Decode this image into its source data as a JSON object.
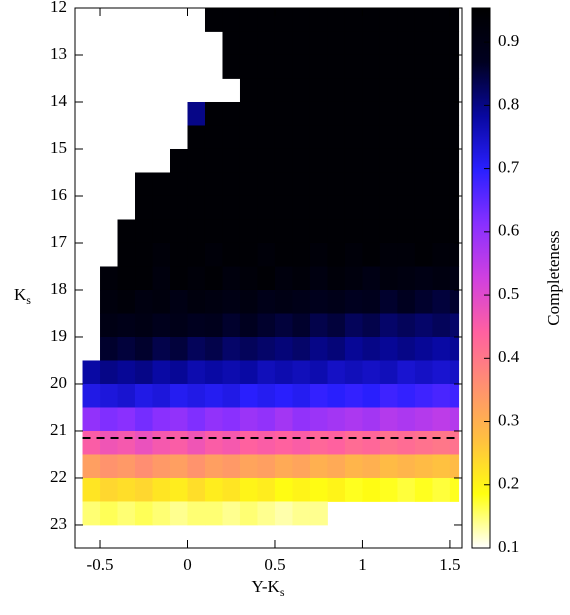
{
  "chart_data": {
    "type": "heatmap",
    "xlabel": "Y-K",
    "xlabel_sub": "s",
    "ylabel": "K",
    "ylabel_sub": "s",
    "xlim": [
      -0.643,
      1.569
    ],
    "ylim": [
      23.49,
      12
    ],
    "xticks": [
      -0.5,
      0,
      0.5,
      1,
      1.5
    ],
    "yticks": [
      12,
      13,
      14,
      15,
      16,
      17,
      18,
      19,
      20,
      21,
      22,
      23
    ],
    "x_bins": [
      -0.6,
      -0.5,
      -0.4,
      -0.3,
      -0.2,
      -0.1,
      0,
      0.1,
      0.2,
      0.3,
      0.4,
      0.5,
      0.6,
      0.7,
      0.8,
      0.9,
      1,
      1.1,
      1.2,
      1.3,
      1.4,
      1.5,
      1.55
    ],
    "y_bins": [
      12,
      12.5,
      13,
      13.5,
      14,
      14.5,
      15,
      15.5,
      16,
      16.5,
      17,
      17.5,
      18,
      18.5,
      19,
      19.5,
      20,
      20.5,
      21,
      21.5,
      22,
      22.5,
      23
    ],
    "values": [
      [
        null,
        null,
        null,
        null,
        null,
        null,
        null,
        0.94,
        0.94,
        0.94,
        0.94,
        0.94,
        0.94,
        0.94,
        0.94,
        0.94,
        0.94,
        0.94,
        0.94,
        0.94,
        0.94,
        0.94
      ],
      [
        null,
        null,
        null,
        null,
        null,
        null,
        null,
        null,
        0.94,
        0.94,
        0.94,
        0.94,
        0.94,
        0.94,
        0.94,
        0.94,
        0.94,
        0.94,
        0.94,
        0.94,
        0.94,
        0.94
      ],
      [
        null,
        null,
        null,
        null,
        null,
        null,
        null,
        null,
        0.94,
        0.94,
        0.94,
        0.94,
        0.94,
        0.94,
        0.94,
        0.94,
        0.94,
        0.94,
        0.94,
        0.94,
        0.94,
        0.94
      ],
      [
        null,
        null,
        null,
        null,
        null,
        null,
        null,
        null,
        null,
        0.94,
        0.94,
        0.94,
        0.94,
        0.94,
        0.94,
        0.94,
        0.94,
        0.94,
        0.94,
        0.94,
        0.94,
        0.94
      ],
      [
        null,
        null,
        null,
        null,
        null,
        null,
        0.8,
        0.94,
        0.94,
        0.94,
        0.94,
        0.94,
        0.94,
        0.94,
        0.94,
        0.94,
        0.94,
        0.94,
        0.94,
        0.94,
        0.94,
        0.94
      ],
      [
        null,
        null,
        null,
        null,
        null,
        null,
        0.94,
        0.94,
        0.94,
        0.94,
        0.94,
        0.94,
        0.94,
        0.94,
        0.94,
        0.94,
        0.94,
        0.94,
        0.94,
        0.94,
        0.94,
        0.94
      ],
      [
        null,
        null,
        null,
        null,
        null,
        0.94,
        0.94,
        0.94,
        0.94,
        0.94,
        0.94,
        0.94,
        0.94,
        0.94,
        0.94,
        0.94,
        0.94,
        0.94,
        0.94,
        0.94,
        0.94,
        0.94
      ],
      [
        null,
        null,
        null,
        0.94,
        0.94,
        0.94,
        0.94,
        0.94,
        0.94,
        0.94,
        0.94,
        0.94,
        0.94,
        0.94,
        0.94,
        0.94,
        0.94,
        0.94,
        0.94,
        0.94,
        0.94,
        0.94
      ],
      [
        null,
        null,
        null,
        0.94,
        0.94,
        0.94,
        0.94,
        0.94,
        0.94,
        0.94,
        0.94,
        0.94,
        0.94,
        0.94,
        0.94,
        0.94,
        0.94,
        0.94,
        0.94,
        0.94,
        0.94,
        0.94
      ],
      [
        null,
        null,
        0.94,
        0.94,
        0.94,
        0.94,
        0.94,
        0.94,
        0.94,
        0.94,
        0.94,
        0.94,
        0.94,
        0.94,
        0.94,
        0.94,
        0.94,
        0.94,
        0.94,
        0.94,
        0.94,
        0.94
      ],
      [
        null,
        null,
        0.94,
        0.94,
        0.93,
        0.94,
        0.94,
        0.93,
        0.94,
        0.94,
        0.93,
        0.94,
        0.94,
        0.93,
        0.94,
        0.93,
        0.94,
        0.93,
        0.93,
        0.94,
        0.93,
        0.93
      ],
      [
        null,
        0.93,
        0.94,
        0.94,
        0.92,
        0.94,
        0.93,
        0.94,
        0.92,
        0.93,
        0.94,
        0.92,
        0.93,
        0.91,
        0.93,
        0.92,
        0.9,
        0.92,
        0.91,
        0.9,
        0.91,
        0.9
      ],
      [
        null,
        0.92,
        0.93,
        0.91,
        0.92,
        0.9,
        0.92,
        0.91,
        0.9,
        0.91,
        0.89,
        0.9,
        0.89,
        0.88,
        0.89,
        0.87,
        0.88,
        0.86,
        0.87,
        0.86,
        0.85,
        0.86
      ],
      [
        null,
        0.9,
        0.89,
        0.9,
        0.88,
        0.89,
        0.87,
        0.88,
        0.86,
        0.87,
        0.86,
        0.85,
        0.86,
        0.84,
        0.85,
        0.83,
        0.84,
        0.82,
        0.83,
        0.82,
        0.83,
        0.82
      ],
      [
        null,
        0.86,
        0.85,
        0.86,
        0.84,
        0.85,
        0.83,
        0.84,
        0.82,
        0.83,
        0.82,
        0.81,
        0.82,
        0.8,
        0.81,
        0.79,
        0.8,
        0.79,
        0.8,
        0.79,
        0.78,
        0.79
      ],
      [
        0.78,
        0.8,
        0.79,
        0.8,
        0.78,
        0.79,
        0.77,
        0.78,
        0.77,
        0.78,
        0.76,
        0.77,
        0.76,
        0.77,
        0.75,
        0.76,
        0.75,
        0.76,
        0.74,
        0.75,
        0.74,
        0.75
      ],
      [
        0.72,
        0.73,
        0.74,
        0.72,
        0.73,
        0.71,
        0.72,
        0.71,
        0.72,
        0.7,
        0.71,
        0.7,
        0.71,
        0.69,
        0.7,
        0.69,
        0.7,
        0.68,
        0.69,
        0.68,
        0.67,
        0.68
      ],
      [
        0.6,
        0.62,
        0.61,
        0.63,
        0.61,
        0.6,
        0.62,
        0.6,
        0.61,
        0.59,
        0.6,
        0.58,
        0.6,
        0.59,
        0.58,
        0.57,
        0.58,
        0.56,
        0.57,
        0.56,
        0.55,
        0.56
      ],
      [
        0.45,
        0.47,
        0.46,
        0.48,
        0.46,
        0.45,
        0.47,
        0.45,
        0.46,
        0.44,
        0.45,
        0.44,
        0.45,
        0.43,
        0.44,
        0.42,
        0.43,
        0.41,
        0.42,
        0.41,
        0.4,
        0.41
      ],
      [
        0.33,
        0.35,
        0.34,
        0.36,
        0.34,
        0.33,
        0.35,
        0.33,
        0.34,
        0.32,
        0.33,
        0.31,
        0.32,
        0.3,
        0.31,
        0.29,
        0.3,
        0.28,
        0.29,
        0.28,
        0.27,
        0.28
      ],
      [
        0.22,
        0.24,
        0.23,
        0.24,
        0.22,
        0.21,
        0.23,
        0.21,
        0.22,
        0.2,
        0.21,
        0.19,
        0.2,
        0.19,
        0.2,
        0.18,
        0.19,
        0.18,
        0.17,
        0.18,
        0.17,
        0.18
      ],
      [
        0.15,
        0.16,
        0.15,
        0.16,
        0.15,
        0.14,
        0.15,
        0.15,
        0.14,
        0.15,
        0.14,
        0.13,
        0.14,
        0.14,
        null,
        null,
        null,
        null,
        null,
        null,
        null,
        null
      ]
    ],
    "reference_line": {
      "y": 21.15,
      "color": "#000000",
      "dashed": true
    },
    "colorbar": {
      "label": "Completeness",
      "clim": [
        0.1,
        0.954
      ],
      "ticks": [
        0.1,
        0.2,
        0.3,
        0.4,
        0.5,
        0.6,
        0.7,
        0.8,
        0.9
      ],
      "colormap": [
        "#ffffff",
        "#ffff10",
        "#ffc040",
        "#ff9070",
        "#ff60a0",
        "#d040e0",
        "#8830ff",
        "#2a20ff",
        "#0808a0",
        "#000020",
        "#000000"
      ]
    }
  }
}
